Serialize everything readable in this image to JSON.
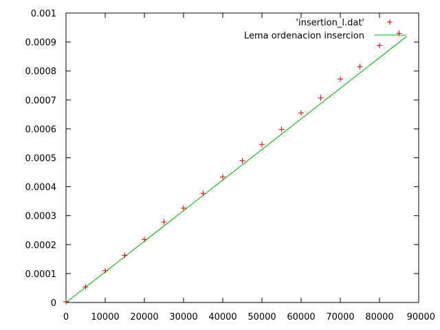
{
  "chart_data": {
    "type": "scatter",
    "title": "",
    "xlabel": "",
    "ylabel": "",
    "xlim": [
      0,
      90000
    ],
    "ylim": [
      0,
      0.001
    ],
    "grid": false,
    "legend_position": "top-right",
    "x_ticks": [
      {
        "value": 0,
        "label": "0"
      },
      {
        "value": 10000,
        "label": "10000"
      },
      {
        "value": 20000,
        "label": "20000"
      },
      {
        "value": 30000,
        "label": "30000"
      },
      {
        "value": 40000,
        "label": "40000"
      },
      {
        "value": 50000,
        "label": "50000"
      },
      {
        "value": 60000,
        "label": "60000"
      },
      {
        "value": 70000,
        "label": "70000"
      },
      {
        "value": 80000,
        "label": "80000"
      },
      {
        "value": 90000,
        "label": "90000"
      }
    ],
    "y_ticks": [
      {
        "value": 0,
        "label": "0"
      },
      {
        "value": 0.0001,
        "label": "0.0001"
      },
      {
        "value": 0.0002,
        "label": "0.0002"
      },
      {
        "value": 0.0003,
        "label": "0.0003"
      },
      {
        "value": 0.0004,
        "label": "0.0004"
      },
      {
        "value": 0.0005,
        "label": "0.0005"
      },
      {
        "value": 0.0006,
        "label": "0.0006"
      },
      {
        "value": 0.0007,
        "label": "0.0007"
      },
      {
        "value": 0.0008,
        "label": "0.0008"
      },
      {
        "value": 0.0009,
        "label": "0.0009"
      },
      {
        "value": 0.001,
        "label": "0.001"
      }
    ],
    "series": [
      {
        "name": "'insertion_l.dat'",
        "kind": "points",
        "marker": "plus",
        "color": "#cc0000",
        "points": [
          [
            0,
            2.5e-06
          ],
          [
            5000,
            5.4e-05
          ],
          [
            10000,
            0.00011
          ],
          [
            15000,
            0.000163
          ],
          [
            20000,
            0.000218
          ],
          [
            25000,
            0.000278
          ],
          [
            30000,
            0.000326
          ],
          [
            35000,
            0.000377
          ],
          [
            40000,
            0.000434
          ],
          [
            45000,
            0.00049
          ],
          [
            50000,
            0.000546
          ],
          [
            55000,
            0.000598
          ],
          [
            60000,
            0.000655
          ],
          [
            65000,
            0.000707
          ],
          [
            70000,
            0.000772
          ],
          [
            75000,
            0.000815
          ],
          [
            80000,
            0.000888
          ],
          [
            85000,
            0.00093
          ]
        ]
      },
      {
        "name": "Lema ordenacion insercion",
        "kind": "line",
        "color": "#00aa00",
        "points": [
          [
            0,
            0.0
          ],
          [
            87000,
            0.00092
          ]
        ]
      }
    ]
  }
}
